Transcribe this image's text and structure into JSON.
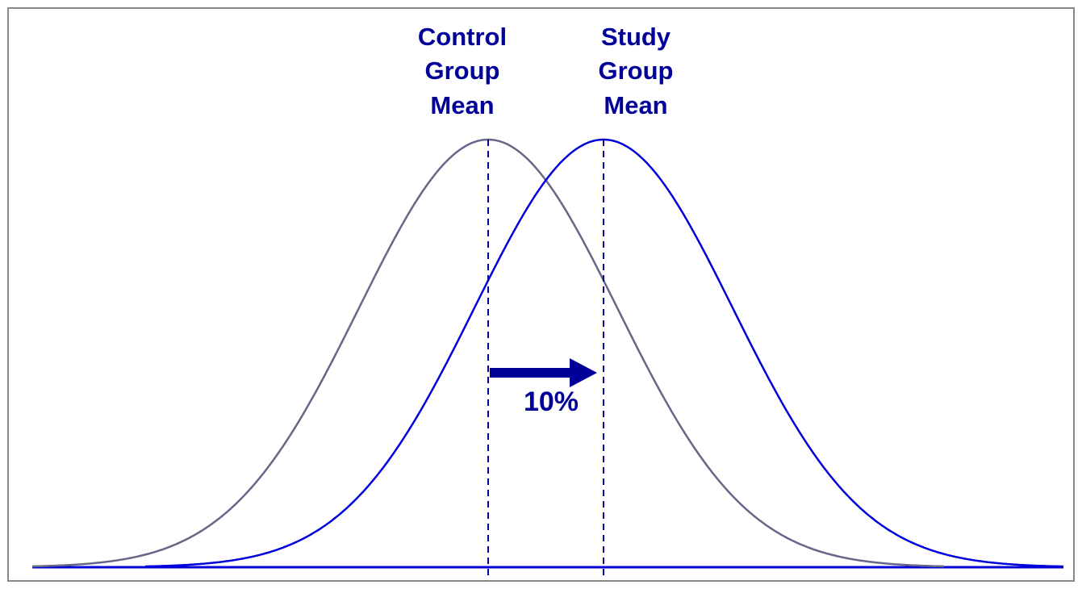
{
  "diagram": {
    "labels": [
      {
        "lines": [
          "Control",
          "Group",
          "Mean"
        ]
      },
      {
        "lines": [
          "Study",
          "Group",
          "Mean"
        ]
      }
    ],
    "shift_label": "10%"
  }
}
